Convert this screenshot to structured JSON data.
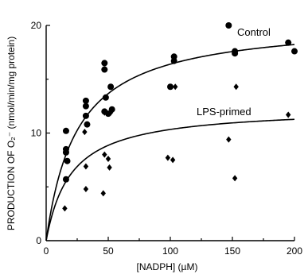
{
  "chart_data": {
    "type": "scatter",
    "xlabel": "[NADPH] (µM)",
    "ylabel": "PRODUCTION OF O₂⁻ (nmol/min/mg protein)",
    "xlim": [
      0,
      200
    ],
    "ylim": [
      0,
      20
    ],
    "x_ticks": [
      "0",
      "50",
      "100",
      "150",
      "200"
    ],
    "y_ticks": [
      "0",
      "10",
      "20"
    ],
    "series": [
      {
        "name": "Control",
        "marker": "circle",
        "points": [
          [
            16,
            10.2
          ],
          [
            16,
            8.5
          ],
          [
            16,
            8.2
          ],
          [
            17,
            7.4
          ],
          [
            16,
            5.7
          ],
          [
            32,
            13
          ],
          [
            32,
            12.5
          ],
          [
            32,
            11.6
          ],
          [
            33,
            10.8
          ],
          [
            47,
            16.5
          ],
          [
            47,
            15.9
          ],
          [
            48,
            13.3
          ],
          [
            47,
            12
          ],
          [
            50,
            11.8
          ],
          [
            52,
            14.3
          ],
          [
            53,
            12.2
          ],
          [
            100,
            14.3
          ],
          [
            103,
            17.1
          ],
          [
            103,
            16.7
          ],
          [
            147,
            20
          ],
          [
            152,
            17.6
          ],
          [
            152,
            17.4
          ],
          [
            195,
            18.4
          ],
          [
            200,
            17.6
          ]
        ],
        "fit": {
          "vmax": 20.5,
          "km": 25
        }
      },
      {
        "name": "LPS-primed",
        "marker": "diamond",
        "points": [
          [
            15,
            3
          ],
          [
            31,
            10.1
          ],
          [
            32,
            6.9
          ],
          [
            32,
            4.8
          ],
          [
            47,
            11.9
          ],
          [
            47,
            8
          ],
          [
            46,
            4.4
          ],
          [
            50,
            7.6
          ],
          [
            51,
            6.8
          ],
          [
            52,
            11.9
          ],
          [
            98,
            7.7
          ],
          [
            102,
            7.5
          ],
          [
            104,
            14.3
          ],
          [
            147,
            9.4
          ],
          [
            152,
            5.8
          ],
          [
            153,
            14.3
          ],
          [
            195,
            11.7
          ]
        ],
        "fit": {
          "vmax": 12.4,
          "km": 20
        }
      }
    ],
    "annotations": [
      "Control",
      "LPS-primed"
    ],
    "grid": false,
    "legend": "none"
  }
}
